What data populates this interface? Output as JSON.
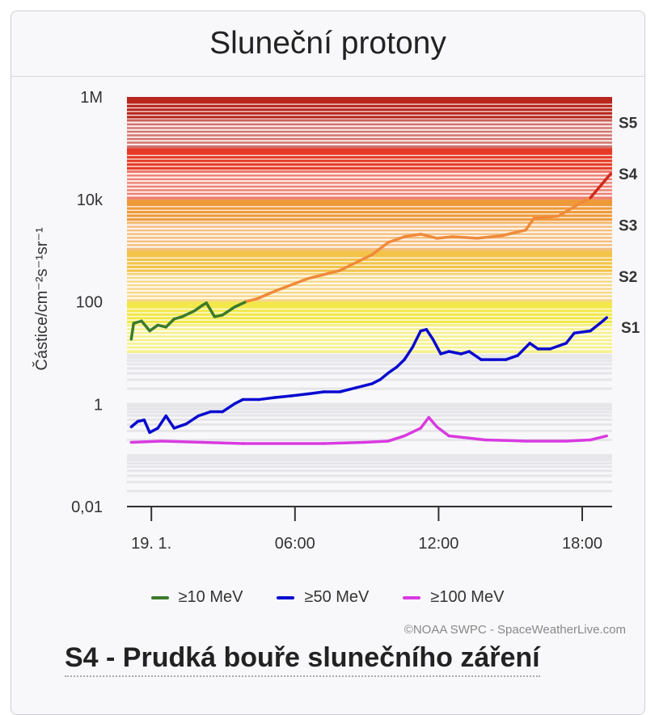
{
  "header": {
    "title": "Sluneční protony"
  },
  "chart_data": {
    "type": "line",
    "title": "Sluneční protony",
    "ylabel": "Částice/cm⁻²s⁻¹sr⁻¹",
    "xlabel": "",
    "yscale": "log",
    "ylim": [
      0.01,
      1000000
    ],
    "xlim_hours": [
      -1.02,
      19.25
    ],
    "y_ticks": [
      {
        "v": 1000000,
        "label": "1M"
      },
      {
        "v": 10000,
        "label": "10k"
      },
      {
        "v": 100,
        "label": "100"
      },
      {
        "v": 1,
        "label": "1"
      },
      {
        "v": 0.01,
        "label": "0,01"
      }
    ],
    "x_ticks": [
      {
        "h": 0,
        "label": "19. 1."
      },
      {
        "h": 6,
        "label": "06:00"
      },
      {
        "h": 12,
        "label": "12:00"
      },
      {
        "h": 18,
        "label": "18:00"
      }
    ],
    "storm_levels": [
      {
        "label": "S1",
        "min": 10,
        "max": 100,
        "color": "#f2e84a"
      },
      {
        "label": "S2",
        "min": 100,
        "max": 1000,
        "color": "#f3c34a"
      },
      {
        "label": "S3",
        "min": 1000,
        "max": 10000,
        "color": "#ef9a3a"
      },
      {
        "label": "S4",
        "min": 10000,
        "max": 100000,
        "color": "#e63a26"
      },
      {
        "label": "S5",
        "min": 100000,
        "max": 1000000,
        "color": "#b8261c"
      }
    ],
    "series": [
      {
        "name": "≥10 MeV",
        "color": "#3a7a2a",
        "points": [
          [
            -0.84,
            18.6
          ],
          [
            -0.74,
            38
          ],
          [
            -0.41,
            42
          ],
          [
            -0.07,
            27
          ],
          [
            0.27,
            35
          ],
          [
            0.61,
            32
          ],
          [
            0.95,
            46
          ],
          [
            1.28,
            51
          ],
          [
            1.79,
            66
          ],
          [
            2.13,
            85
          ],
          [
            2.3,
            95
          ],
          [
            2.64,
            51
          ],
          [
            2.97,
            55
          ],
          [
            3.48,
            79
          ],
          [
            3.99,
            102
          ],
          [
            4.43,
            115
          ],
          [
            5.17,
            162
          ],
          [
            6.52,
            282
          ],
          [
            7.87,
            407
          ],
          [
            9.22,
            832
          ],
          [
            9.9,
            1445
          ],
          [
            10.57,
            1862
          ],
          [
            11.25,
            2089
          ],
          [
            11.93,
            1738
          ],
          [
            12.6,
            1862
          ],
          [
            13.61,
            1738
          ],
          [
            14.63,
            1950
          ],
          [
            15.64,
            2512
          ],
          [
            15.98,
            4266
          ],
          [
            16.99,
            4677
          ],
          [
            18.01,
            8913
          ],
          [
            18.34,
            10715
          ],
          [
            19.19,
            31623
          ]
        ]
      },
      {
        "name": "≥50 MeV",
        "color": "#0a0ad0",
        "points": [
          [
            -0.84,
            0.36
          ],
          [
            -0.57,
            0.46
          ],
          [
            -0.3,
            0.49
          ],
          [
            -0.07,
            0.28
          ],
          [
            0.27,
            0.34
          ],
          [
            0.61,
            0.59
          ],
          [
            0.95,
            0.34
          ],
          [
            1.45,
            0.41
          ],
          [
            1.96,
            0.59
          ],
          [
            2.47,
            0.71
          ],
          [
            2.97,
            0.71
          ],
          [
            3.48,
            1.02
          ],
          [
            3.82,
            1.23
          ],
          [
            4.49,
            1.23
          ],
          [
            5.17,
            1.35
          ],
          [
            5.84,
            1.45
          ],
          [
            6.52,
            1.58
          ],
          [
            7.2,
            1.74
          ],
          [
            7.87,
            1.74
          ],
          [
            8.55,
            2.09
          ],
          [
            9.22,
            2.51
          ],
          [
            9.56,
            3.02
          ],
          [
            9.9,
            4.07
          ],
          [
            10.24,
            5.25
          ],
          [
            10.57,
            7.41
          ],
          [
            10.91,
            12.9
          ],
          [
            11.25,
            26.9
          ],
          [
            11.49,
            28.8
          ],
          [
            11.76,
            18.6
          ],
          [
            12.09,
            9.6
          ],
          [
            12.43,
            10.7
          ],
          [
            12.94,
            9.6
          ],
          [
            13.28,
            10.7
          ],
          [
            13.78,
            7.4
          ],
          [
            14.29,
            7.4
          ],
          [
            14.8,
            7.4
          ],
          [
            15.3,
            8.9
          ],
          [
            15.81,
            15.5
          ],
          [
            16.15,
            12.0
          ],
          [
            16.66,
            12.0
          ],
          [
            17.33,
            15.5
          ],
          [
            17.67,
            24.5
          ],
          [
            18.34,
            26.9
          ],
          [
            18.85,
            41.7
          ],
          [
            19.02,
            49
          ]
        ]
      },
      {
        "name": "≥100 MeV",
        "color": "#d93ae0",
        "points": [
          [
            -0.84,
            0.18
          ],
          [
            0.44,
            0.19
          ],
          [
            2.13,
            0.18
          ],
          [
            3.82,
            0.17
          ],
          [
            7.2,
            0.17
          ],
          [
            8.89,
            0.18
          ],
          [
            9.9,
            0.19
          ],
          [
            10.57,
            0.24
          ],
          [
            11.25,
            0.34
          ],
          [
            11.59,
            0.55
          ],
          [
            11.93,
            0.36
          ],
          [
            12.43,
            0.24
          ],
          [
            13.95,
            0.2
          ],
          [
            15.64,
            0.19
          ],
          [
            17.33,
            0.19
          ],
          [
            18.34,
            0.2
          ],
          [
            19.02,
            0.24
          ]
        ]
      }
    ]
  },
  "legend": [
    {
      "label": "≥10 MeV",
      "color": "#3a7a2a"
    },
    {
      "label": "≥50 MeV",
      "color": "#0a0ad0"
    },
    {
      "label": "≥100 MeV",
      "color": "#d93ae0"
    }
  ],
  "credit": "©NOAA SWPC - SpaceWeatherLive.com",
  "status": "S4 - Prudká bouře slunečního záření"
}
